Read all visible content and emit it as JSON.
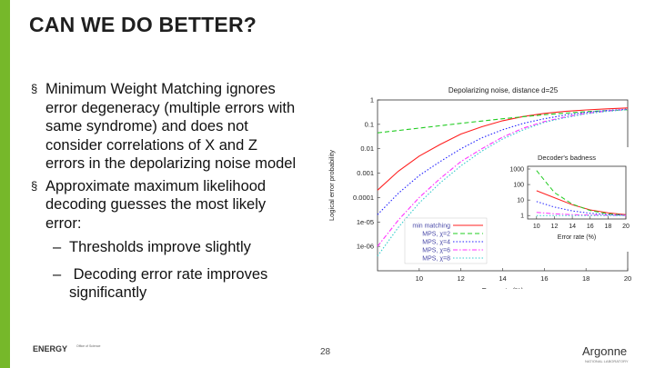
{
  "slide": {
    "title": "CAN WE DO BETTER?",
    "accent_color": "#76b82a",
    "bullets": [
      {
        "marker": "§",
        "lines": [
          "Minimum Weight Matching ignores",
          "error degeneracy (multiple errors with",
          "same syndrome) and does not",
          "consider correlations of X and Z",
          "errors in the depolarizing noise model"
        ]
      },
      {
        "marker": "§",
        "lines": [
          "Approximate maximum likelihood",
          "decoding guesses the most likely",
          "error:"
        ],
        "subbullets": [
          {
            "marker": "–",
            "lines": [
              "Thresholds improve slightly"
            ]
          },
          {
            "marker": "–",
            "lines": [
              " Decoding error rate improves",
              "significantly"
            ]
          }
        ]
      }
    ],
    "page_number": "28",
    "footer": {
      "doe_logo_text": "ENERGY",
      "doe_small_text": "Office of Science",
      "argonne_text": "Argonne",
      "argonne_subtext": "NATIONAL LABORATORY"
    }
  },
  "chart_data": [
    {
      "type": "line",
      "title": "Depolarizing noise, distance d=25",
      "xlabel": "Error rate (%)",
      "ylabel": "Logical error probability",
      "yscale": "log",
      "xlim": [
        8,
        20
      ],
      "ylim": [
        1e-07,
        1
      ],
      "x_ticks": [
        "10",
        "12",
        "14",
        "16",
        "18",
        "20"
      ],
      "y_ticks": [
        "1",
        "0.1",
        "0.01",
        "0.001",
        "0.0001",
        "1e-05",
        "1e-06"
      ],
      "legend_placement": "bottom-left",
      "series": [
        {
          "name": "min matching",
          "color": "#ff2020",
          "style": "solid",
          "x": [
            8,
            9,
            10,
            11,
            12,
            13,
            14,
            15,
            16,
            17,
            18,
            19,
            20
          ],
          "y": [
            0.0002,
            0.0012,
            0.005,
            0.015,
            0.04,
            0.08,
            0.14,
            0.21,
            0.28,
            0.34,
            0.39,
            0.43,
            0.47
          ]
        },
        {
          "name": "MPS, χ=2",
          "color": "#22cc22",
          "style": "dashed",
          "x": [
            8,
            10,
            12,
            14,
            16,
            18,
            20
          ],
          "y": [
            0.045,
            0.07,
            0.11,
            0.17,
            0.25,
            0.33,
            0.4
          ]
        },
        {
          "name": "MPS, χ=4",
          "color": "#2222ff",
          "style": "dotted",
          "x": [
            8,
            9,
            10,
            11,
            12,
            13,
            14,
            15,
            16,
            17,
            18,
            19,
            20
          ],
          "y": [
            2e-05,
            0.00015,
            0.0008,
            0.003,
            0.01,
            0.028,
            0.06,
            0.11,
            0.17,
            0.24,
            0.31,
            0.37,
            0.42
          ]
        },
        {
          "name": "MPS, χ=6",
          "color": "#ff33ff",
          "style": "dash-dot",
          "x": [
            8,
            9,
            10,
            11,
            12,
            13,
            14,
            15,
            16,
            17,
            18,
            19,
            20
          ],
          "y": [
            1e-06,
            1.2e-05,
            0.0001,
            0.0006,
            0.003,
            0.01,
            0.03,
            0.07,
            0.13,
            0.2,
            0.28,
            0.35,
            0.41
          ]
        },
        {
          "name": "MPS, χ=8",
          "color": "#33cccc",
          "style": "dotted",
          "x": [
            8,
            9,
            10,
            11,
            12,
            13,
            14,
            15,
            16,
            17,
            18,
            19,
            20
          ],
          "y": [
            4e-07,
            6e-06,
            6e-05,
            0.0004,
            0.002,
            0.008,
            0.025,
            0.06,
            0.12,
            0.19,
            0.27,
            0.34,
            0.4
          ]
        }
      ]
    },
    {
      "type": "line",
      "title": "Decoder's badness",
      "xlabel": "Error rate (%)",
      "yscale": "log",
      "xlim": [
        9,
        20
      ],
      "ylim": [
        0.6,
        1500
      ],
      "x_ticks": [
        "10",
        "12",
        "14",
        "16",
        "18",
        "20"
      ],
      "y_ticks": [
        "1000",
        "100",
        "10",
        "1"
      ],
      "series": [
        {
          "color": "#ff2020",
          "style": "solid",
          "x": [
            10,
            12,
            14,
            16,
            18,
            20
          ],
          "y": [
            40,
            14,
            5,
            2.3,
            1.5,
            1.15
          ]
        },
        {
          "color": "#22cc22",
          "style": "dashed",
          "x": [
            10,
            12,
            14,
            16,
            18,
            20
          ],
          "y": [
            800,
            30,
            5.5,
            2.1,
            1.3,
            1.05
          ]
        },
        {
          "color": "#2222ff",
          "style": "dotted",
          "x": [
            10,
            12,
            14,
            16,
            18,
            20
          ],
          "y": [
            8,
            3.5,
            2,
            1.4,
            1.15,
            1.05
          ]
        },
        {
          "color": "#ff33ff",
          "style": "dash-dot",
          "x": [
            10,
            12,
            14,
            16,
            18,
            20
          ],
          "y": [
            1.6,
            1.3,
            1.15,
            1.08,
            1.04,
            1.02
          ]
        },
        {
          "color": "#33cccc",
          "style": "dotted",
          "x": [
            10,
            12,
            14,
            16,
            18,
            20
          ],
          "y": [
            1,
            1,
            1,
            1,
            1,
            1
          ]
        }
      ]
    }
  ]
}
